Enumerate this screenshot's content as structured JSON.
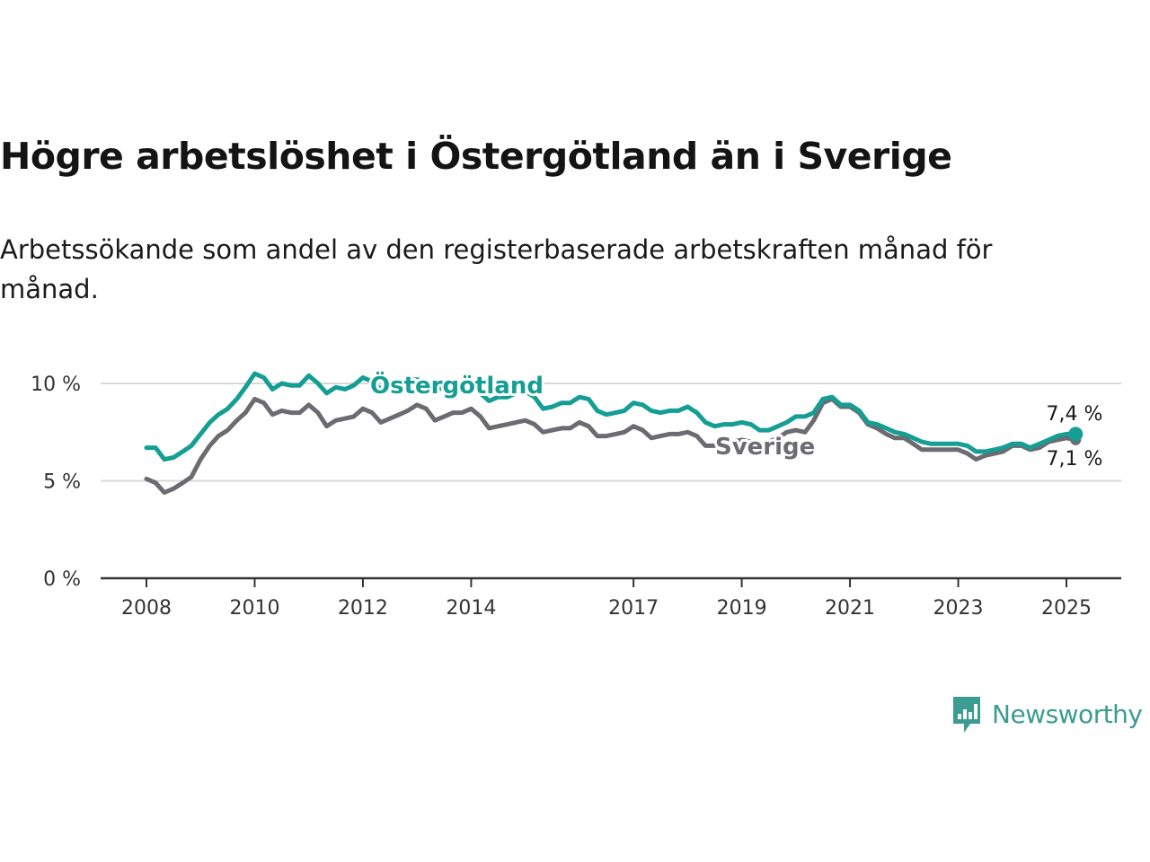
{
  "title": "Högre arbetslöshet i Östergötland än i Sverige",
  "subtitle": "Arbetssökande som andel av den registerbaserade arbetskraften månad för månad.",
  "brand": {
    "name": "Newsworthy",
    "icon": "newsworthy-logo-icon",
    "color": "#3b9c92"
  },
  "colors": {
    "ostergotland": "#159e93",
    "sverige": "#6d6b72",
    "grid": "#d9d9d9",
    "axis": "#333333"
  },
  "chart_data": {
    "type": "line",
    "title": "Högre arbetslöshet i Östergötland än i Sverige",
    "subtitle": "Arbetssökande som andel av den registerbaserade arbetskraften månad för månad.",
    "xlabel": "",
    "ylabel": "",
    "ylim": [
      0,
      10
    ],
    "yticks": [
      {
        "value": 0,
        "label": "0 %"
      },
      {
        "value": 5,
        "label": "5 %"
      },
      {
        "value": 10,
        "label": "10 %"
      }
    ],
    "xticks": [
      {
        "value": 2008,
        "label": "2008"
      },
      {
        "value": 2010,
        "label": "2010"
      },
      {
        "value": 2012,
        "label": "2012"
      },
      {
        "value": 2014,
        "label": "2014"
      },
      {
        "value": 2017,
        "label": "2017"
      },
      {
        "value": 2019,
        "label": "2019"
      },
      {
        "value": 2021,
        "label": "2021"
      },
      {
        "value": 2023,
        "label": "2023"
      },
      {
        "value": 2025,
        "label": "2025"
      }
    ],
    "grid": true,
    "legend": "inline labels",
    "series": [
      {
        "name": "Östergötland",
        "color": "#159e93",
        "end_label": "7,4 %",
        "points": [
          [
            2008.0,
            6.7
          ],
          [
            2008.17,
            6.7
          ],
          [
            2008.33,
            6.1
          ],
          [
            2008.5,
            6.2
          ],
          [
            2008.67,
            6.5
          ],
          [
            2008.83,
            6.8
          ],
          [
            2009.0,
            7.4
          ],
          [
            2009.17,
            8.0
          ],
          [
            2009.33,
            8.4
          ],
          [
            2009.5,
            8.7
          ],
          [
            2009.67,
            9.2
          ],
          [
            2009.83,
            9.8
          ],
          [
            2010.0,
            10.5
          ],
          [
            2010.17,
            10.3
          ],
          [
            2010.33,
            9.7
          ],
          [
            2010.5,
            10.0
          ],
          [
            2010.67,
            9.9
          ],
          [
            2010.83,
            9.9
          ],
          [
            2011.0,
            10.4
          ],
          [
            2011.17,
            10.0
          ],
          [
            2011.33,
            9.5
          ],
          [
            2011.5,
            9.8
          ],
          [
            2011.67,
            9.7
          ],
          [
            2011.83,
            9.9
          ],
          [
            2012.0,
            10.3
          ],
          [
            2012.17,
            10.1
          ],
          [
            2012.33,
            9.7
          ],
          [
            2012.5,
            9.8
          ],
          [
            2012.67,
            9.9
          ],
          [
            2012.83,
            10.2
          ],
          [
            2013.0,
            10.2
          ],
          [
            2013.17,
            10.1
          ],
          [
            2013.33,
            9.8
          ],
          [
            2013.5,
            9.7
          ],
          [
            2013.67,
            9.8
          ],
          [
            2013.83,
            9.9
          ],
          [
            2014.0,
            9.9
          ],
          [
            2014.17,
            9.5
          ],
          [
            2014.33,
            9.1
          ],
          [
            2014.5,
            9.3
          ],
          [
            2014.67,
            9.3
          ],
          [
            2014.83,
            9.5
          ],
          [
            2015.0,
            9.6
          ],
          [
            2015.17,
            9.3
          ],
          [
            2015.33,
            8.7
          ],
          [
            2015.5,
            8.8
          ],
          [
            2015.67,
            9.0
          ],
          [
            2015.83,
            9.0
          ],
          [
            2016.0,
            9.3
          ],
          [
            2016.17,
            9.2
          ],
          [
            2016.33,
            8.6
          ],
          [
            2016.5,
            8.4
          ],
          [
            2016.67,
            8.5
          ],
          [
            2016.83,
            8.6
          ],
          [
            2017.0,
            9.0
          ],
          [
            2017.17,
            8.9
          ],
          [
            2017.33,
            8.6
          ],
          [
            2017.5,
            8.5
          ],
          [
            2017.67,
            8.6
          ],
          [
            2017.83,
            8.6
          ],
          [
            2018.0,
            8.8
          ],
          [
            2018.17,
            8.5
          ],
          [
            2018.33,
            8.0
          ],
          [
            2018.5,
            7.8
          ],
          [
            2018.67,
            7.9
          ],
          [
            2018.83,
            7.9
          ],
          [
            2019.0,
            8.0
          ],
          [
            2019.17,
            7.9
          ],
          [
            2019.33,
            7.6
          ],
          [
            2019.5,
            7.6
          ],
          [
            2019.67,
            7.8
          ],
          [
            2019.83,
            8.0
          ],
          [
            2020.0,
            8.3
          ],
          [
            2020.17,
            8.3
          ],
          [
            2020.33,
            8.5
          ],
          [
            2020.5,
            9.2
          ],
          [
            2020.67,
            9.3
          ],
          [
            2020.83,
            8.9
          ],
          [
            2021.0,
            8.9
          ],
          [
            2021.17,
            8.6
          ],
          [
            2021.33,
            8.0
          ],
          [
            2021.5,
            7.9
          ],
          [
            2021.67,
            7.7
          ],
          [
            2021.83,
            7.5
          ],
          [
            2022.0,
            7.4
          ],
          [
            2022.17,
            7.2
          ],
          [
            2022.33,
            7.0
          ],
          [
            2022.5,
            6.9
          ],
          [
            2022.67,
            6.9
          ],
          [
            2022.83,
            6.9
          ],
          [
            2023.0,
            6.9
          ],
          [
            2023.17,
            6.8
          ],
          [
            2023.33,
            6.5
          ],
          [
            2023.5,
            6.5
          ],
          [
            2023.67,
            6.6
          ],
          [
            2023.83,
            6.7
          ],
          [
            2024.0,
            6.9
          ],
          [
            2024.17,
            6.9
          ],
          [
            2024.33,
            6.7
          ],
          [
            2024.5,
            6.9
          ],
          [
            2024.67,
            7.1
          ],
          [
            2024.83,
            7.3
          ],
          [
            2025.0,
            7.4
          ],
          [
            2025.17,
            7.4
          ]
        ]
      },
      {
        "name": "Sverige",
        "color": "#6d6b72",
        "end_label": "7,1 %",
        "points": [
          [
            2008.0,
            5.1
          ],
          [
            2008.17,
            4.9
          ],
          [
            2008.33,
            4.4
          ],
          [
            2008.5,
            4.6
          ],
          [
            2008.67,
            4.9
          ],
          [
            2008.83,
            5.2
          ],
          [
            2009.0,
            6.1
          ],
          [
            2009.17,
            6.8
          ],
          [
            2009.33,
            7.3
          ],
          [
            2009.5,
            7.6
          ],
          [
            2009.67,
            8.1
          ],
          [
            2009.83,
            8.5
          ],
          [
            2010.0,
            9.2
          ],
          [
            2010.17,
            9.0
          ],
          [
            2010.33,
            8.4
          ],
          [
            2010.5,
            8.6
          ],
          [
            2010.67,
            8.5
          ],
          [
            2010.83,
            8.5
          ],
          [
            2011.0,
            8.9
          ],
          [
            2011.17,
            8.5
          ],
          [
            2011.33,
            7.8
          ],
          [
            2011.5,
            8.1
          ],
          [
            2011.67,
            8.2
          ],
          [
            2011.83,
            8.3
          ],
          [
            2012.0,
            8.7
          ],
          [
            2012.17,
            8.5
          ],
          [
            2012.33,
            8.0
          ],
          [
            2012.5,
            8.2
          ],
          [
            2012.67,
            8.4
          ],
          [
            2012.83,
            8.6
          ],
          [
            2013.0,
            8.9
          ],
          [
            2013.17,
            8.7
          ],
          [
            2013.33,
            8.1
          ],
          [
            2013.5,
            8.3
          ],
          [
            2013.67,
            8.5
          ],
          [
            2013.83,
            8.5
          ],
          [
            2014.0,
            8.7
          ],
          [
            2014.17,
            8.3
          ],
          [
            2014.33,
            7.7
          ],
          [
            2014.5,
            7.8
          ],
          [
            2014.67,
            7.9
          ],
          [
            2014.83,
            8.0
          ],
          [
            2015.0,
            8.1
          ],
          [
            2015.17,
            7.9
          ],
          [
            2015.33,
            7.5
          ],
          [
            2015.5,
            7.6
          ],
          [
            2015.67,
            7.7
          ],
          [
            2015.83,
            7.7
          ],
          [
            2016.0,
            8.0
          ],
          [
            2016.17,
            7.8
          ],
          [
            2016.33,
            7.3
          ],
          [
            2016.5,
            7.3
          ],
          [
            2016.67,
            7.4
          ],
          [
            2016.83,
            7.5
          ],
          [
            2017.0,
            7.8
          ],
          [
            2017.17,
            7.6
          ],
          [
            2017.33,
            7.2
          ],
          [
            2017.5,
            7.3
          ],
          [
            2017.67,
            7.4
          ],
          [
            2017.83,
            7.4
          ],
          [
            2018.0,
            7.5
          ],
          [
            2018.17,
            7.3
          ],
          [
            2018.33,
            6.8
          ],
          [
            2018.5,
            6.8
          ],
          [
            2018.67,
            6.9
          ],
          [
            2018.83,
            7.0
          ],
          [
            2019.0,
            7.1
          ],
          [
            2019.17,
            7.0
          ],
          [
            2019.33,
            6.9
          ],
          [
            2019.5,
            7.0
          ],
          [
            2019.67,
            7.2
          ],
          [
            2019.83,
            7.5
          ],
          [
            2020.0,
            7.6
          ],
          [
            2020.17,
            7.5
          ],
          [
            2020.33,
            8.1
          ],
          [
            2020.5,
            9.0
          ],
          [
            2020.67,
            9.2
          ],
          [
            2020.83,
            8.8
          ],
          [
            2021.0,
            8.8
          ],
          [
            2021.17,
            8.5
          ],
          [
            2021.33,
            7.9
          ],
          [
            2021.5,
            7.7
          ],
          [
            2021.67,
            7.4
          ],
          [
            2021.83,
            7.2
          ],
          [
            2022.0,
            7.2
          ],
          [
            2022.17,
            6.9
          ],
          [
            2022.33,
            6.6
          ],
          [
            2022.5,
            6.6
          ],
          [
            2022.67,
            6.6
          ],
          [
            2022.83,
            6.6
          ],
          [
            2023.0,
            6.6
          ],
          [
            2023.17,
            6.4
          ],
          [
            2023.33,
            6.1
          ],
          [
            2023.5,
            6.3
          ],
          [
            2023.67,
            6.4
          ],
          [
            2023.83,
            6.5
          ],
          [
            2024.0,
            6.8
          ],
          [
            2024.17,
            6.8
          ],
          [
            2024.33,
            6.6
          ],
          [
            2024.5,
            6.7
          ],
          [
            2024.67,
            7.0
          ],
          [
            2024.83,
            7.1
          ],
          [
            2025.0,
            7.2
          ],
          [
            2025.17,
            7.1
          ]
        ]
      }
    ]
  }
}
